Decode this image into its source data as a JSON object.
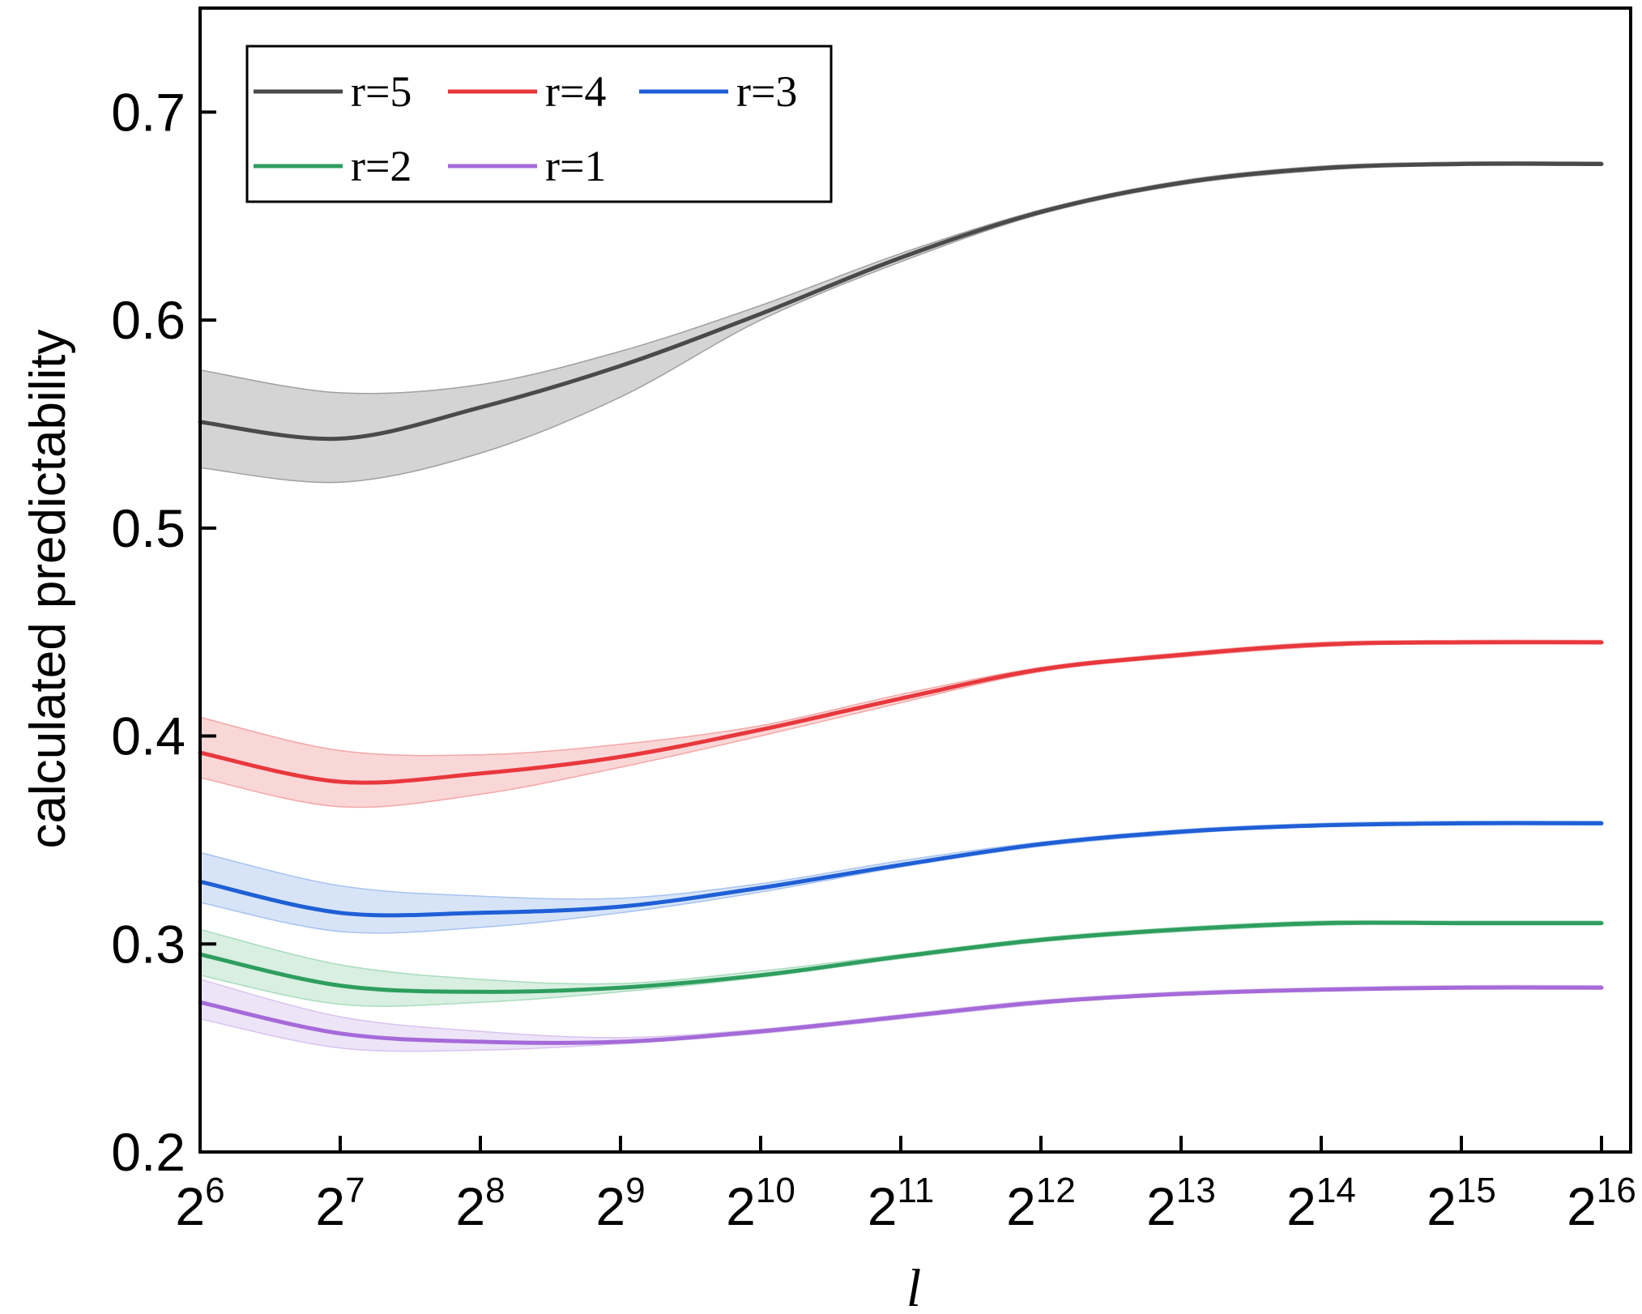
{
  "chart_data": {
    "type": "line",
    "title": "",
    "xlabel": "l",
    "ylabel": "calculated predictability",
    "x_scale": "log2",
    "x_ticks": [
      {
        "base": "2",
        "exp": "6",
        "value": 64
      },
      {
        "base": "2",
        "exp": "7",
        "value": 128
      },
      {
        "base": "2",
        "exp": "8",
        "value": 256
      },
      {
        "base": "2",
        "exp": "9",
        "value": 512
      },
      {
        "base": "2",
        "exp": "10",
        "value": 1024
      },
      {
        "base": "2",
        "exp": "11",
        "value": 2048
      },
      {
        "base": "2",
        "exp": "12",
        "value": 4096
      },
      {
        "base": "2",
        "exp": "13",
        "value": 8192
      },
      {
        "base": "2",
        "exp": "14",
        "value": 16384
      },
      {
        "base": "2",
        "exp": "15",
        "value": 32768
      },
      {
        "base": "2",
        "exp": "16",
        "value": 65536
      }
    ],
    "y_ticks": [
      "0.2",
      "0.3",
      "0.4",
      "0.5",
      "0.6",
      "0.7"
    ],
    "xlim": [
      64,
      65536
    ],
    "ylim": [
      0.2,
      0.75
    ],
    "grid": false,
    "legend_position": "top-left",
    "x": [
      64,
      128,
      256,
      512,
      1024,
      2048,
      4096,
      8192,
      16384,
      32768,
      65536
    ],
    "series": [
      {
        "name": "r=5",
        "color": "#4a4a4a",
        "band_color": "#a0a0a0",
        "values": [
          0.551,
          0.543,
          0.558,
          0.578,
          0.603,
          0.63,
          0.652,
          0.666,
          0.673,
          0.675,
          0.675
        ],
        "lower": [
          0.529,
          0.522,
          0.536,
          0.563,
          0.6,
          0.628,
          0.651,
          0.665,
          0.672,
          0.675,
          0.675
        ],
        "upper": [
          0.576,
          0.565,
          0.569,
          0.585,
          0.607,
          0.632,
          0.653,
          0.667,
          0.674,
          0.676,
          0.676
        ]
      },
      {
        "name": "r=4",
        "color": "#e8383d",
        "band_color": "#f4a6a6",
        "values": [
          0.392,
          0.378,
          0.382,
          0.39,
          0.403,
          0.418,
          0.432,
          0.439,
          0.444,
          0.445,
          0.445
        ],
        "lower": [
          0.38,
          0.366,
          0.372,
          0.385,
          0.4,
          0.416,
          0.431,
          0.438,
          0.443,
          0.445,
          0.445
        ],
        "upper": [
          0.409,
          0.393,
          0.391,
          0.396,
          0.405,
          0.42,
          0.433,
          0.44,
          0.445,
          0.446,
          0.446
        ]
      },
      {
        "name": "r=3",
        "color": "#1f5fd6",
        "band_color": "#a7c3ef",
        "values": [
          0.33,
          0.315,
          0.315,
          0.318,
          0.327,
          0.338,
          0.348,
          0.354,
          0.357,
          0.358,
          0.358
        ],
        "lower": [
          0.32,
          0.306,
          0.308,
          0.315,
          0.325,
          0.337,
          0.347,
          0.353,
          0.357,
          0.358,
          0.358
        ],
        "upper": [
          0.344,
          0.328,
          0.323,
          0.322,
          0.329,
          0.34,
          0.349,
          0.355,
          0.358,
          0.359,
          0.359
        ]
      },
      {
        "name": "r=2",
        "color": "#2e9e5e",
        "band_color": "#a9dcbd",
        "values": [
          0.295,
          0.28,
          0.277,
          0.279,
          0.285,
          0.294,
          0.302,
          0.307,
          0.31,
          0.31,
          0.31
        ],
        "lower": [
          0.285,
          0.271,
          0.272,
          0.277,
          0.284,
          0.293,
          0.301,
          0.306,
          0.309,
          0.31,
          0.31
        ],
        "upper": [
          0.307,
          0.29,
          0.283,
          0.281,
          0.287,
          0.295,
          0.303,
          0.308,
          0.311,
          0.311,
          0.311
        ]
      },
      {
        "name": "r=1",
        "color": "#a56ad9",
        "band_color": "#d9c3ef",
        "values": [
          0.272,
          0.257,
          0.253,
          0.253,
          0.258,
          0.265,
          0.272,
          0.276,
          0.278,
          0.279,
          0.279
        ],
        "lower": [
          0.264,
          0.25,
          0.249,
          0.252,
          0.257,
          0.264,
          0.271,
          0.276,
          0.278,
          0.279,
          0.279
        ],
        "upper": [
          0.283,
          0.265,
          0.258,
          0.255,
          0.259,
          0.266,
          0.273,
          0.277,
          0.279,
          0.28,
          0.28
        ]
      }
    ]
  }
}
